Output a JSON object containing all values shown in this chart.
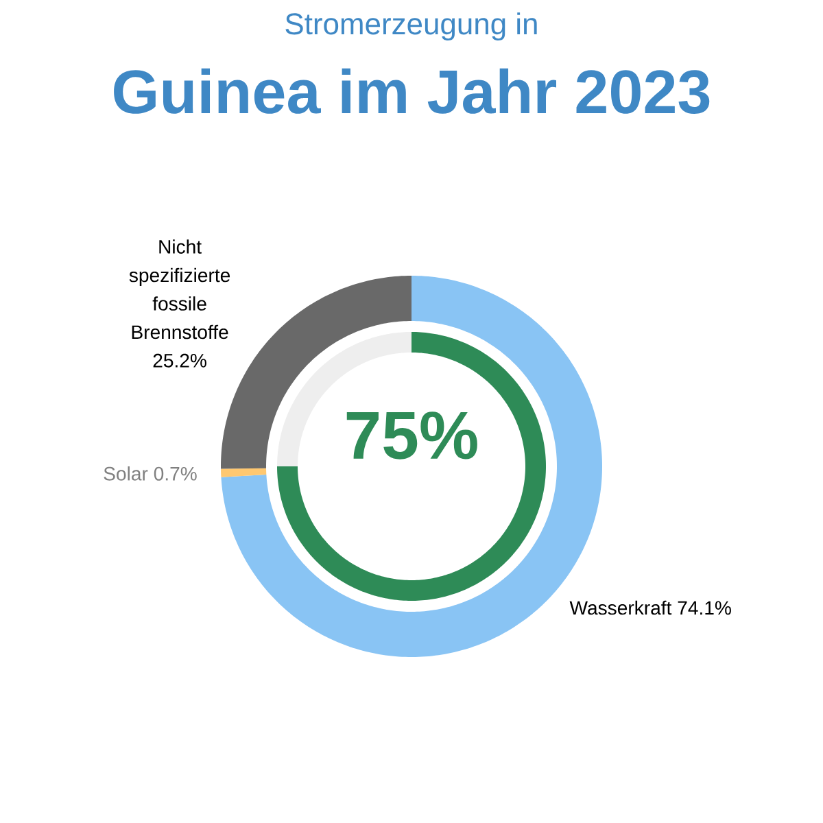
{
  "chart_data": [
    {
      "type": "donut",
      "title": "Stromerzeugung in",
      "subtitle": "Guinea im Jahr 2023",
      "categories": [
        "Wasserkraft",
        "Solar",
        "Nicht spezifizierte fossile Brennstoffe"
      ],
      "values": [
        74.1,
        0.7,
        25.2
      ],
      "value_labels": [
        "74.1%",
        "0.7%",
        "25.2%"
      ],
      "colors": [
        "#89c4f4",
        "#ffc870",
        "#696969"
      ]
    },
    {
      "type": "donut",
      "categories": [
        null,
        null
      ],
      "values": [
        75,
        25
      ],
      "colors": [
        "#2e8b57",
        "#eeeeee"
      ],
      "annotations": [
        "75%"
      ]
    }
  ]
}
